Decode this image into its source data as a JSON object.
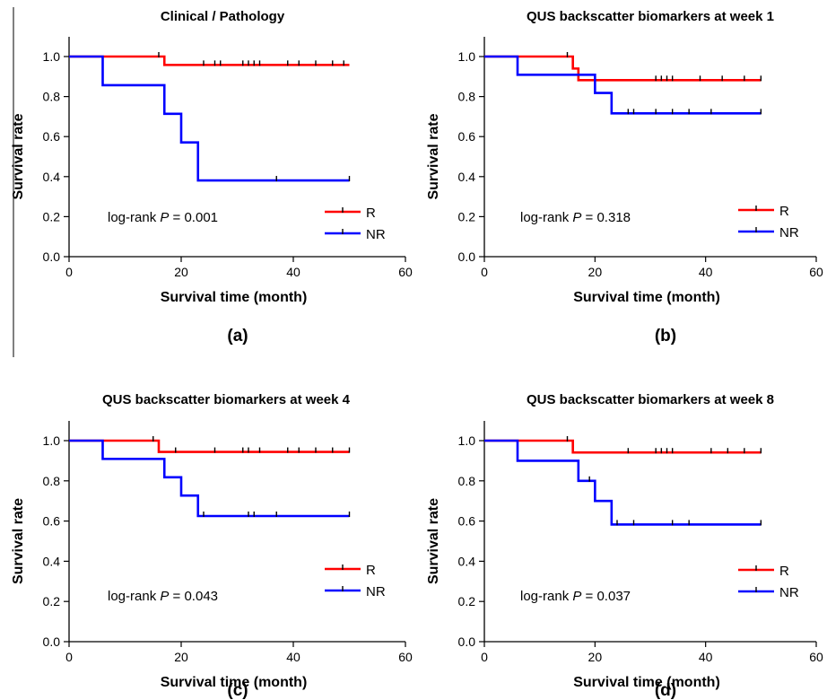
{
  "figure": {
    "panels": [
      {
        "title": "Clinical / Pathology",
        "label": "(a)",
        "annotation_prefix": "log-rank ",
        "annotation_p": "P",
        "annotation_value": " = 0.001"
      },
      {
        "title": "QUS backscatter biomarkers at week 1",
        "label": "(b)",
        "annotation_prefix": "log-rank ",
        "annotation_p": "P",
        "annotation_value": " = 0.318"
      },
      {
        "title": "QUS backscatter biomarkers at week 4",
        "label": "(c)",
        "annotation_prefix": "log-rank ",
        "annotation_p": "P",
        "annotation_value": " = 0.043"
      },
      {
        "title": "QUS backscatter biomarkers at week 8",
        "label": "(d)",
        "annotation_prefix": "log-rank ",
        "annotation_p": "P",
        "annotation_value": " = 0.037"
      }
    ]
  },
  "colors": {
    "R": "#ff0000",
    "NR": "#0000ff",
    "axis": "#000000"
  },
  "chart_data": [
    {
      "type": "line",
      "title": "Clinical / Pathology",
      "xlabel": "Survival time (month)",
      "ylabel": "Survival rate",
      "xlim": [
        0,
        60
      ],
      "ylim": [
        0,
        1.0
      ],
      "xticks": [
        "0",
        "20",
        "40",
        "60"
      ],
      "yticks": [
        "0.0",
        "0.2",
        "0.4",
        "0.6",
        "0.8",
        "1.0"
      ],
      "legend_position": "bottom-right",
      "annotation": "log-rank P = 0.001",
      "series": [
        {
          "name": "R",
          "color": "#ff0000",
          "steps": [
            [
              0,
              1.0
            ],
            [
              17,
              0.958
            ],
            [
              50,
              0.958
            ]
          ],
          "censored": [
            16,
            24,
            26,
            27,
            31,
            32,
            33,
            34,
            39,
            41,
            44,
            47,
            49
          ]
        },
        {
          "name": "NR",
          "color": "#0000ff",
          "steps": [
            [
              0,
              1.0
            ],
            [
              6,
              0.857
            ],
            [
              17,
              0.714
            ],
            [
              20,
              0.571
            ],
            [
              23,
              0.381
            ],
            [
              50,
              0.381
            ]
          ],
          "censored": [
            37,
            50
          ]
        }
      ]
    },
    {
      "type": "line",
      "title": "QUS backscatter biomarkers at week 1",
      "xlabel": "Survival time (month)",
      "ylabel": "Survival rate",
      "xlim": [
        0,
        60
      ],
      "ylim": [
        0,
        1.0
      ],
      "xticks": [
        "0",
        "20",
        "40",
        "60"
      ],
      "yticks": [
        "0.0",
        "0.2",
        "0.4",
        "0.6",
        "0.8",
        "1.0"
      ],
      "legend_position": "bottom-right",
      "annotation": "log-rank P = 0.318",
      "series": [
        {
          "name": "R",
          "color": "#ff0000",
          "steps": [
            [
              0,
              1.0
            ],
            [
              16,
              0.94
            ],
            [
              17,
              0.882
            ],
            [
              50,
              0.882
            ]
          ],
          "censored": [
            15,
            31,
            32,
            33,
            34,
            39,
            43,
            47,
            50
          ]
        },
        {
          "name": "NR",
          "color": "#0000ff",
          "steps": [
            [
              0,
              1.0
            ],
            [
              6,
              0.909
            ],
            [
              20,
              0.818
            ],
            [
              23,
              0.716
            ],
            [
              50,
              0.716
            ]
          ],
          "censored": [
            26,
            27,
            31,
            34,
            37,
            41,
            50
          ]
        }
      ]
    },
    {
      "type": "line",
      "title": "QUS backscatter biomarkers at week 4",
      "xlabel": "Survival time (month)",
      "ylabel": "Survival rate",
      "xlim": [
        0,
        60
      ],
      "ylim": [
        0,
        1.0
      ],
      "xticks": [
        "0",
        "20",
        "40",
        "60"
      ],
      "yticks": [
        "0.0",
        "0.2",
        "0.4",
        "0.6",
        "0.8",
        "1.0"
      ],
      "legend_position": "bottom-right",
      "annotation": "log-rank P = 0.043",
      "series": [
        {
          "name": "R",
          "color": "#ff0000",
          "steps": [
            [
              0,
              1.0
            ],
            [
              16,
              0.944
            ],
            [
              50,
              0.944
            ]
          ],
          "censored": [
            15,
            19,
            26,
            31,
            32,
            34,
            39,
            41,
            44,
            47,
            50
          ]
        },
        {
          "name": "NR",
          "color": "#0000ff",
          "steps": [
            [
              0,
              1.0
            ],
            [
              6,
              0.909
            ],
            [
              17,
              0.818
            ],
            [
              20,
              0.727
            ],
            [
              23,
              0.625
            ],
            [
              50,
              0.625
            ]
          ],
          "censored": [
            24,
            32,
            33,
            37,
            50
          ]
        }
      ]
    },
    {
      "type": "line",
      "title": "QUS backscatter biomarkers at week 8",
      "xlabel": "Survival time (month)",
      "ylabel": "Survival rate",
      "xlim": [
        0,
        60
      ],
      "ylim": [
        0,
        1.0
      ],
      "xticks": [
        "0",
        "20",
        "40",
        "60"
      ],
      "yticks": [
        "0.0",
        "0.2",
        "0.4",
        "0.6",
        "0.8",
        "1.0"
      ],
      "legend_position": "bottom-right",
      "annotation": "log-rank P = 0.037",
      "series": [
        {
          "name": "R",
          "color": "#ff0000",
          "steps": [
            [
              0,
              1.0
            ],
            [
              16,
              0.941
            ],
            [
              50,
              0.941
            ]
          ],
          "censored": [
            15,
            26,
            31,
            32,
            33,
            34,
            41,
            44,
            47,
            50
          ]
        },
        {
          "name": "NR",
          "color": "#0000ff",
          "steps": [
            [
              0,
              1.0
            ],
            [
              6,
              0.9
            ],
            [
              17,
              0.8
            ],
            [
              20,
              0.7
            ],
            [
              23,
              0.583
            ],
            [
              50,
              0.583
            ]
          ],
          "censored": [
            19,
            24,
            27,
            34,
            37,
            50
          ]
        }
      ]
    }
  ]
}
